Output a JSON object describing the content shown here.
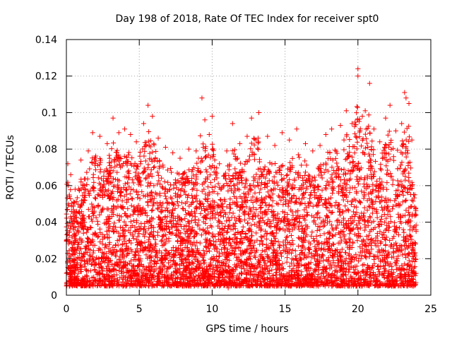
{
  "chart_data": {
    "type": "scatter",
    "title": "Day 198 of 2018, Rate Of TEC Index for receiver spt0",
    "xlabel": "GPS time / hours",
    "ylabel": "ROTI / TECUs",
    "xlim": [
      0,
      25
    ],
    "ylim": [
      0,
      0.14
    ],
    "x_ticks": [
      0,
      5,
      10,
      15,
      20,
      25
    ],
    "x_tick_labels": [
      "0",
      "5",
      "10",
      "15",
      "20",
      "25"
    ],
    "y_ticks": [
      0,
      0.02,
      0.04,
      0.06,
      0.08,
      0.1,
      0.12,
      0.14
    ],
    "y_tick_labels": [
      "0",
      "0.02",
      "0.04",
      "0.06",
      "0.08",
      "0.1",
      "0.12",
      "0.14"
    ],
    "grid": true,
    "marker": "+",
    "color": "#ff0000",
    "series": [
      {
        "name": "ROTI",
        "points": [
          [
            0.1,
            0.072
          ],
          [
            0.3,
            0.066
          ],
          [
            0.6,
            0.058
          ],
          [
            1.0,
            0.074
          ],
          [
            1.5,
            0.079
          ],
          [
            1.8,
            0.089
          ],
          [
            2.3,
            0.087
          ],
          [
            2.8,
            0.083
          ],
          [
            3.2,
            0.097
          ],
          [
            3.6,
            0.089
          ],
          [
            4.0,
            0.091
          ],
          [
            4.4,
            0.088
          ],
          [
            4.8,
            0.084
          ],
          [
            5.3,
            0.094
          ],
          [
            5.6,
            0.104
          ],
          [
            5.9,
            0.098
          ],
          [
            6.3,
            0.086
          ],
          [
            6.8,
            0.081
          ],
          [
            7.3,
            0.078
          ],
          [
            7.8,
            0.075
          ],
          [
            8.4,
            0.08
          ],
          [
            8.9,
            0.079
          ],
          [
            9.3,
            0.108
          ],
          [
            9.5,
            0.096
          ],
          [
            9.8,
            0.088
          ],
          [
            10.0,
            0.098
          ],
          [
            10.5,
            0.072
          ],
          [
            11.0,
            0.079
          ],
          [
            11.4,
            0.094
          ],
          [
            11.9,
            0.083
          ],
          [
            12.4,
            0.087
          ],
          [
            12.7,
            0.097
          ],
          [
            13.2,
            0.1
          ],
          [
            13.8,
            0.087
          ],
          [
            14.3,
            0.082
          ],
          [
            14.8,
            0.089
          ],
          [
            15.3,
            0.085
          ],
          [
            15.8,
            0.091
          ],
          [
            16.4,
            0.083
          ],
          [
            16.9,
            0.079
          ],
          [
            17.4,
            0.082
          ],
          [
            17.8,
            0.088
          ],
          [
            18.2,
            0.091
          ],
          [
            18.8,
            0.093
          ],
          [
            19.2,
            0.101
          ],
          [
            19.6,
            0.094
          ],
          [
            20.0,
            0.124
          ],
          [
            20.0,
            0.12
          ],
          [
            20.3,
            0.098
          ],
          [
            20.5,
            0.101
          ],
          [
            20.8,
            0.116
          ],
          [
            21.1,
            0.091
          ],
          [
            21.5,
            0.084
          ],
          [
            21.9,
            0.097
          ],
          [
            22.2,
            0.104
          ],
          [
            22.6,
            0.09
          ],
          [
            23.0,
            0.094
          ],
          [
            23.2,
            0.111
          ],
          [
            23.3,
            0.108
          ],
          [
            23.5,
            0.105
          ],
          [
            23.7,
            0.085
          ],
          [
            23.9,
            0.055
          ],
          [
            0.2,
            0.005
          ],
          [
            1.2,
            0.007
          ],
          [
            2.6,
            0.006
          ],
          [
            4.1,
            0.005
          ],
          [
            5.5,
            0.007
          ],
          [
            7.0,
            0.006
          ],
          [
            8.6,
            0.008
          ],
          [
            10.2,
            0.005
          ],
          [
            11.1,
            0.004
          ],
          [
            12.8,
            0.006
          ],
          [
            14.4,
            0.005
          ],
          [
            16.0,
            0.007
          ],
          [
            17.6,
            0.006
          ],
          [
            19.1,
            0.005
          ],
          [
            20.7,
            0.006
          ],
          [
            22.3,
            0.005
          ],
          [
            23.6,
            0.007
          ]
        ]
      }
    ]
  }
}
